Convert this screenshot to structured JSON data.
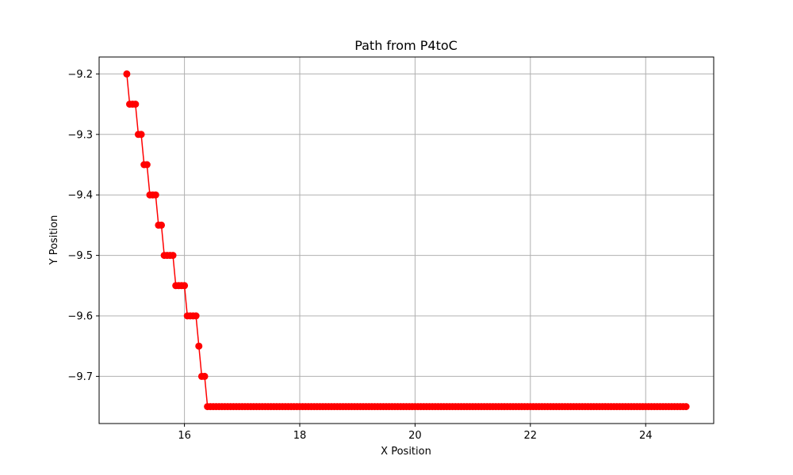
{
  "chart_data": {
    "type": "line",
    "title": "Path from P4toC",
    "xlabel": "X Position",
    "ylabel": "Y Position",
    "xlim": [
      14.52,
      25.18
    ],
    "ylim": [
      -9.778,
      -9.172
    ],
    "xticks": [
      16,
      18,
      20,
      22,
      24
    ],
    "yticks": [
      -9.2,
      -9.3,
      -9.4,
      -9.5,
      -9.6,
      -9.7
    ],
    "xtick_labels": [
      "16",
      "18",
      "20",
      "22",
      "24"
    ],
    "ytick_labels": [
      "−9.2",
      "−9.3",
      "−9.4",
      "−9.5",
      "−9.6",
      "−9.7"
    ],
    "grid": true,
    "series": [
      {
        "color": "#ff0000",
        "marker": "circle",
        "points": [
          [
            15.0,
            -9.2
          ],
          [
            15.05,
            -9.25
          ],
          [
            15.1,
            -9.25
          ],
          [
            15.15,
            -9.25
          ],
          [
            15.2,
            -9.3
          ],
          [
            15.25,
            -9.3
          ],
          [
            15.3,
            -9.35
          ],
          [
            15.35,
            -9.35
          ],
          [
            15.4,
            -9.4
          ],
          [
            15.45,
            -9.4
          ],
          [
            15.5,
            -9.4
          ],
          [
            15.55,
            -9.45
          ],
          [
            15.6,
            -9.45
          ],
          [
            15.65,
            -9.5
          ],
          [
            15.7,
            -9.5
          ],
          [
            15.75,
            -9.5
          ],
          [
            15.8,
            -9.5
          ],
          [
            15.85,
            -9.55
          ],
          [
            15.9,
            -9.55
          ],
          [
            15.95,
            -9.55
          ],
          [
            16.0,
            -9.55
          ],
          [
            16.05,
            -9.6
          ],
          [
            16.1,
            -9.6
          ],
          [
            16.15,
            -9.6
          ],
          [
            16.2,
            -9.6
          ],
          [
            16.25,
            -9.65
          ],
          [
            16.3,
            -9.7
          ],
          [
            16.35,
            -9.7
          ],
          [
            16.4,
            -9.75
          ]
        ],
        "flat_segment": {
          "x_start": 16.4,
          "x_end": 24.7,
          "x_step": 0.05,
          "y": -9.75
        }
      }
    ]
  }
}
